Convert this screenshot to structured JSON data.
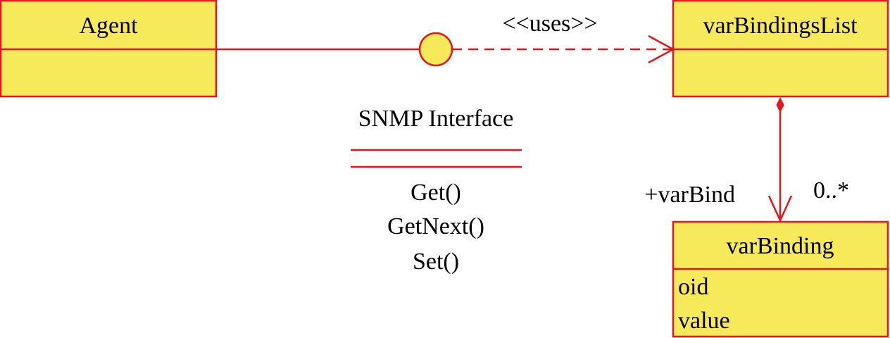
{
  "colors": {
    "class_fill": "#f7ea5a",
    "line": "#e8141c",
    "text": "#000000",
    "interface_fill": "#f7ea5a"
  },
  "classes": {
    "agent": {
      "name": "Agent",
      "attributes": []
    },
    "var_bindings_list": {
      "name": "varBindingsList",
      "attributes": []
    },
    "var_binding": {
      "name": "varBinding",
      "attributes": [
        "oid",
        "value"
      ]
    }
  },
  "interface": {
    "name": "SNMP Interface",
    "operations": [
      "Get()",
      "GetNext()",
      "Set()"
    ]
  },
  "dependency": {
    "stereotype": "<<uses>>"
  },
  "composition": {
    "role": "+varBind",
    "multiplicity": "0..*"
  }
}
